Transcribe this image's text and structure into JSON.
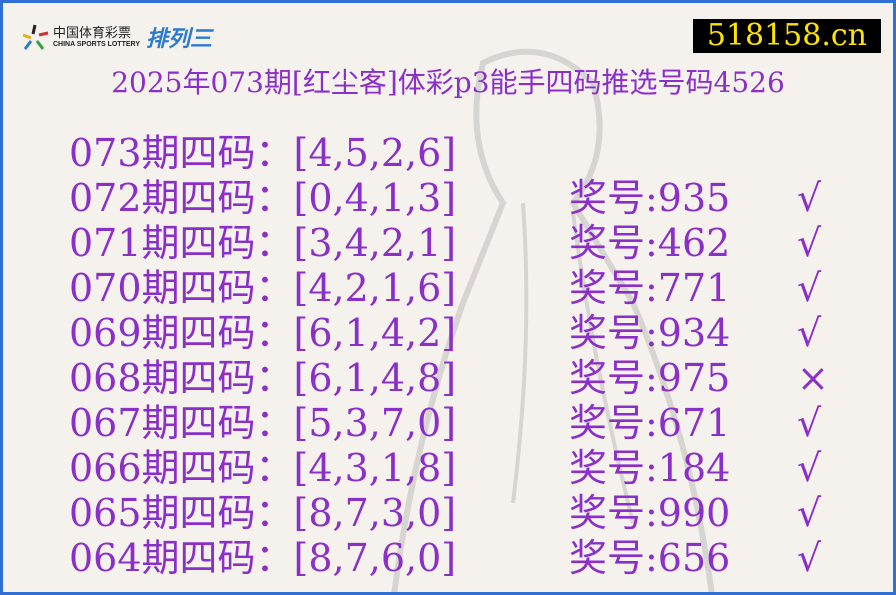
{
  "logo": {
    "cn": "中国体育彩票",
    "en": "CHINA SPORTS LOTTERY",
    "game": "排列三"
  },
  "site": "518158.cn",
  "title": "2025年073期[红尘客]体彩p3能手四码推选号码4526",
  "colors": {
    "text": "#8b2fc9",
    "border": "#2f6fd6",
    "site_bg": "#000000",
    "site_text": "#ffe400"
  },
  "rows": [
    {
      "pick": "073期四码：[4,5,2,6]",
      "prize": "",
      "mark": ""
    },
    {
      "pick": "072期四码：[0,4,1,3]",
      "prize": "奖号:935",
      "mark": "√"
    },
    {
      "pick": "071期四码：[3,4,2,1]",
      "prize": "奖号:462",
      "mark": "√"
    },
    {
      "pick": "070期四码：[4,2,1,6]",
      "prize": "奖号:771",
      "mark": "√"
    },
    {
      "pick": "069期四码：[6,1,4,2]",
      "prize": "奖号:934",
      "mark": "√"
    },
    {
      "pick": "068期四码：[6,1,4,8]",
      "prize": "奖号:975",
      "mark": "×"
    },
    {
      "pick": "067期四码：[5,3,7,0]",
      "prize": "奖号:671",
      "mark": "√"
    },
    {
      "pick": "066期四码：[4,3,1,8]",
      "prize": "奖号:184",
      "mark": "√"
    },
    {
      "pick": "065期四码：[8,7,3,0]",
      "prize": "奖号:990",
      "mark": "√"
    },
    {
      "pick": "064期四码：[8,7,6,0]",
      "prize": "奖号:656",
      "mark": "√"
    }
  ]
}
